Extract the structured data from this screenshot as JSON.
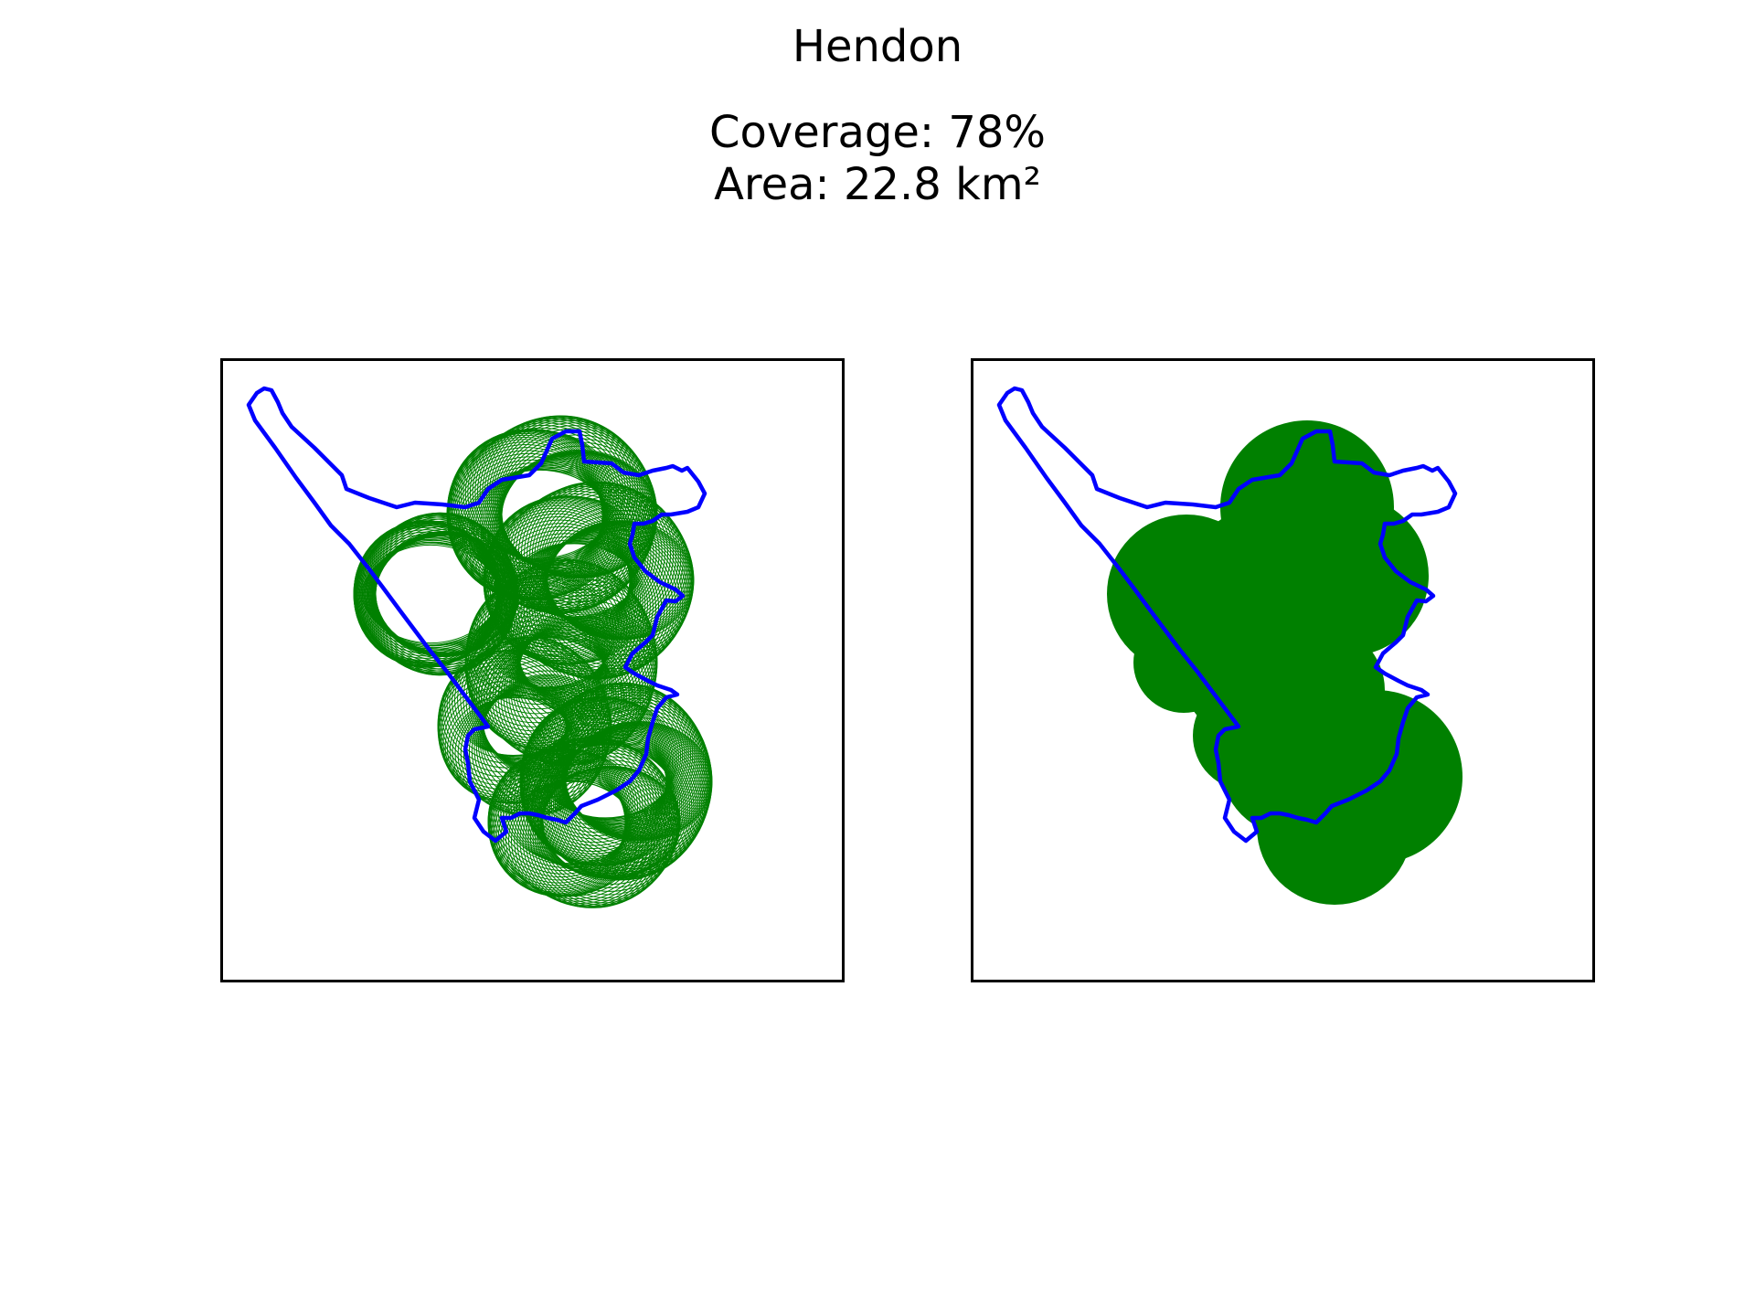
{
  "figure": {
    "title": "Hendon",
    "coverage_text": "Coverage: 78%",
    "area_text": "Area: 22.8 km²"
  },
  "panels": [
    {
      "style": "circle outlines"
    },
    {
      "style": "filled circles"
    }
  ],
  "colors": {
    "boundary": "#0000ff",
    "coverage": "#008000",
    "frame": "#000000"
  }
}
